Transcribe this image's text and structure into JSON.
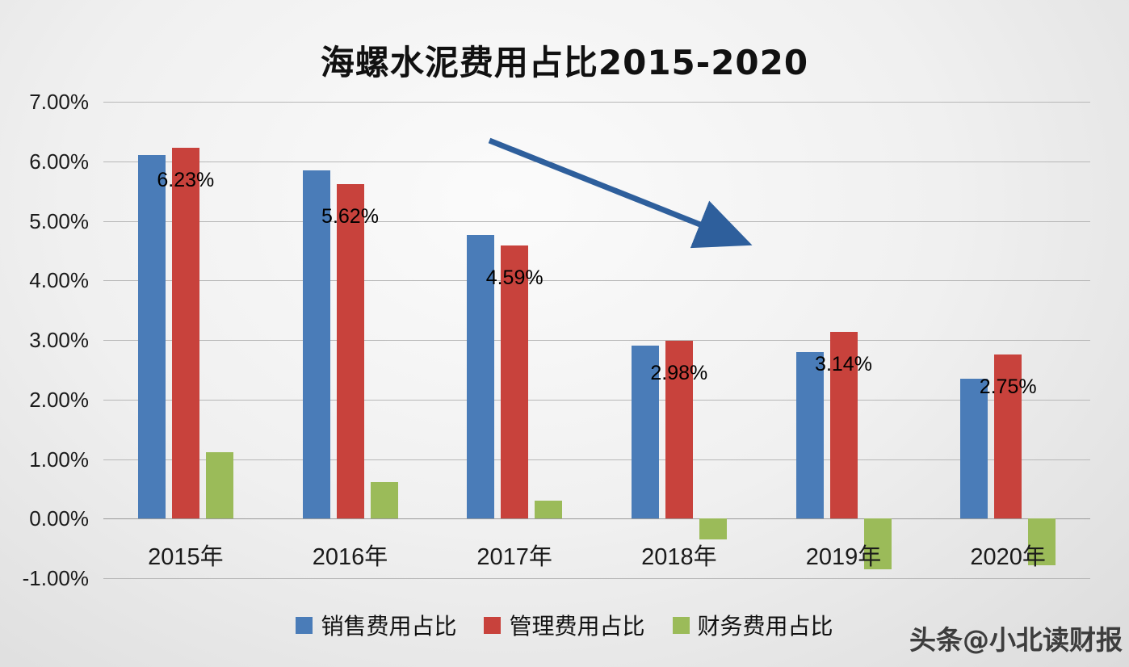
{
  "page": {
    "watermark": "头条@小北读财报"
  },
  "chart_data": {
    "type": "bar",
    "title": "海螺水泥费用占比2015-2020",
    "categories": [
      "2015年",
      "2016年",
      "2017年",
      "2018年",
      "2019年",
      "2020年"
    ],
    "series": [
      {
        "name": "销售费用占比",
        "color": "#4A7CB8",
        "values": [
          6.1,
          5.85,
          4.76,
          2.91,
          2.8,
          2.35
        ]
      },
      {
        "name": "管理费用占比",
        "color": "#C8423C",
        "values": [
          6.23,
          5.62,
          4.59,
          2.98,
          3.14,
          2.75
        ],
        "labels": [
          "6.23%",
          "5.62%",
          "4.59%",
          "2.98%",
          "3.14%",
          "2.75%"
        ]
      },
      {
        "name": "财务费用占比",
        "color": "#9BBB59",
        "values": [
          1.12,
          0.62,
          0.3,
          -0.35,
          -0.85,
          -0.78
        ]
      }
    ],
    "ylim": [
      -1,
      7
    ],
    "y_ticks": [
      "7.00%",
      "6.00%",
      "5.00%",
      "4.00%",
      "3.00%",
      "2.00%",
      "1.00%",
      "0.00%",
      "-1.00%"
    ],
    "grid": true,
    "legend_position": "bottom",
    "annotation_arrow": {
      "color": "#2E5F9C"
    }
  }
}
